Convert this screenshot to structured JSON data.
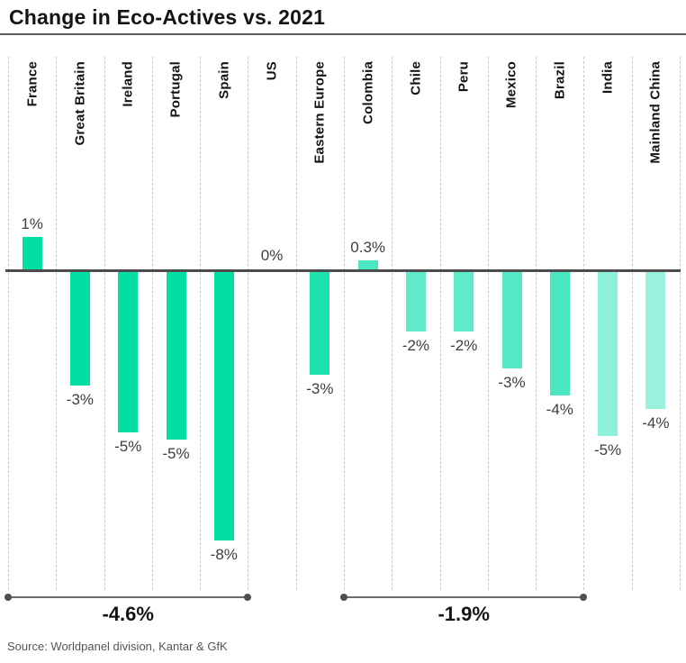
{
  "header": {
    "title": "Change in Eco-Actives vs. 2021"
  },
  "footer": {
    "source": "Source: Worldpanel division, Kantar & GfK"
  },
  "colors": {
    "zero_line": "#4d4d4d",
    "grid": "#c7c7c7",
    "bracket": "#6b6b6b",
    "value_label": "#3d3d3d",
    "title": "#141414"
  },
  "chart_data": {
    "type": "bar",
    "title": "Change in Eco-Actives vs. 2021",
    "unit": "percent",
    "orientation": "vertical",
    "categories": [
      "France",
      "Great Britain",
      "Ireland",
      "Portugal",
      "Spain",
      "US",
      "Eastern Europe",
      "Colombia",
      "Chile",
      "Peru",
      "Mexico",
      "Brazil",
      "India",
      "Mainland China"
    ],
    "values": [
      1.0,
      -3.4,
      -4.8,
      -5.0,
      -8.0,
      0.0,
      -3.1,
      0.3,
      -1.8,
      -1.8,
      -2.9,
      -3.7,
      -4.9,
      -4.1
    ],
    "value_labels": [
      "1%",
      "-3%",
      "-5%",
      "-5%",
      "-8%",
      "0%",
      "-3%",
      "0.3%",
      "-2%",
      "-2%",
      "-3%",
      "-4%",
      "-5%",
      "-4%"
    ],
    "bar_colors": [
      "#03dea4",
      "#03dea4",
      "#03dea4",
      "#03dea4",
      "#03dea4",
      "#03dea4",
      "#1ce2af",
      "#49e7c2",
      "#61eaca",
      "#61eaca",
      "#55e8c6",
      "#4ae6c0",
      "#8df0da",
      "#98f2de"
    ],
    "groups": [
      {
        "label": "-4.6%",
        "start": "France",
        "end": "Spain"
      },
      {
        "label": "-1.9%",
        "start": "Colombia",
        "end": "Brazil"
      }
    ],
    "axis": {
      "zero_line": true,
      "value_axis_hidden": true,
      "grid": "vertical-dashed"
    },
    "ylim": [
      -8.5,
      1.5
    ],
    "legend": "none"
  }
}
